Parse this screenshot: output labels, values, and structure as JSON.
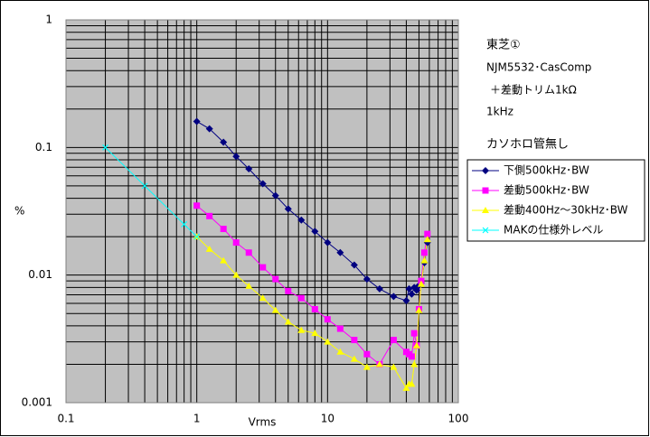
{
  "chart_data": {
    "type": "line",
    "log_x": true,
    "log_y": true,
    "grid": true,
    "xlabel": "Vrms",
    "ylabel": "%",
    "xlim": [
      0.1,
      100
    ],
    "ylim": [
      0.001,
      1
    ],
    "xticks": [
      0.1,
      1,
      10,
      100
    ],
    "yticks": [
      0.001,
      0.01,
      0.1,
      1
    ],
    "xminor_ticks": [
      0.2,
      0.3,
      0.4,
      0.5,
      0.6,
      0.7,
      0.8,
      0.9,
      2,
      3,
      4,
      5,
      6,
      7,
      8,
      9,
      20,
      30,
      40,
      50,
      60,
      70,
      80,
      90
    ],
    "yminor_ticks": [
      0.002,
      0.003,
      0.004,
      0.005,
      0.006,
      0.007,
      0.008,
      0.009,
      0.02,
      0.03,
      0.04,
      0.05,
      0.06,
      0.07,
      0.08,
      0.09,
      0.2,
      0.3,
      0.4,
      0.5,
      0.6,
      0.7,
      0.8,
      0.9
    ],
    "annotations": [
      "東芝①",
      "NJM5532･CasComp",
      "＋差動トリム1kΩ",
      "1kHz",
      "カソホロ管無し"
    ],
    "legend": "right",
    "series": [
      {
        "name": "下側500kHz･BW",
        "color": "#000080",
        "marker": "diamond",
        "x": [
          1,
          1.25,
          1.6,
          2,
          2.5,
          3.2,
          4,
          5,
          6.3,
          8,
          10,
          12.5,
          16,
          20,
          25,
          32,
          40,
          42,
          44,
          46,
          48,
          50,
          52,
          55,
          58
        ],
        "values": [
          0.16,
          0.14,
          0.11,
          0.085,
          0.068,
          0.052,
          0.042,
          0.033,
          0.027,
          0.022,
          0.018,
          0.015,
          0.012,
          0.0093,
          0.0078,
          0.0068,
          0.0063,
          0.0078,
          0.0071,
          0.008,
          0.0076,
          0.0083,
          0.0087,
          0.0125,
          0.018
        ]
      },
      {
        "name": "差動500kHz･BW",
        "color": "#ff00ff",
        "marker": "square",
        "x": [
          1,
          1.25,
          1.6,
          2,
          2.5,
          3.2,
          4,
          5,
          6.3,
          8,
          10,
          12.5,
          16,
          20,
          25,
          32,
          40,
          42,
          44,
          46,
          48,
          50,
          52,
          55,
          58
        ],
        "values": [
          0.035,
          0.029,
          0.023,
          0.018,
          0.015,
          0.0115,
          0.0093,
          0.0075,
          0.0066,
          0.0054,
          0.0045,
          0.0038,
          0.0031,
          0.0024,
          0.002,
          0.0031,
          0.0025,
          0.0024,
          0.0023,
          0.0035,
          0.0028,
          0.0054,
          0.009,
          0.015,
          0.021
        ]
      },
      {
        "name": "差動400Hz～30kHz･BW",
        "color": "#ffff00",
        "marker": "triangle",
        "x": [
          1,
          1.25,
          1.6,
          2,
          2.5,
          3.2,
          4,
          5,
          6.3,
          8,
          10,
          12.5,
          16,
          20,
          25,
          32,
          40,
          42,
          44,
          46,
          48,
          50,
          52,
          55,
          58
        ],
        "values": [
          0.02,
          0.016,
          0.013,
          0.01,
          0.0082,
          0.0066,
          0.0053,
          0.0043,
          0.0037,
          0.0035,
          0.003,
          0.0025,
          0.0022,
          0.0019,
          0.002,
          0.0019,
          0.0013,
          0.0014,
          0.0014,
          0.002,
          0.0028,
          0.0053,
          0.0085,
          0.013,
          0.019
        ]
      },
      {
        "name": "MAKの仕様外レベル",
        "color": "#00ffff",
        "marker": "x",
        "x": [
          0.2,
          0.4,
          0.8,
          1
        ],
        "values": [
          0.1,
          0.05,
          0.025,
          0.02
        ]
      }
    ]
  }
}
